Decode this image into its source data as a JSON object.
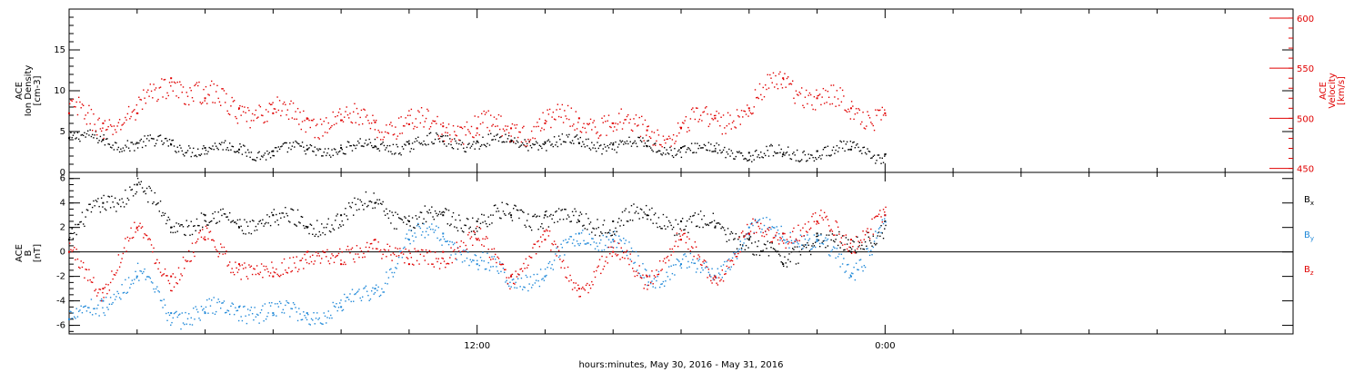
{
  "chart_data": {
    "type": "scatter",
    "xlabel": "hours:minutes, May 30, 2016 - May 31, 2016",
    "x_unit": "hours since May 30, 2016 00:00",
    "x_range": [
      0,
      36
    ],
    "x_ticks": [
      {
        "at": 12,
        "label": "12:00"
      },
      {
        "at": 24,
        "label": "0:00"
      }
    ],
    "panels": [
      {
        "name": "top",
        "left_axis": {
          "label_lines": [
            "ACE",
            "Ion Density",
            "[cm-3]"
          ],
          "range": [
            0,
            20
          ],
          "ticks": [
            0,
            5,
            10,
            15
          ],
          "tick_labels": [
            "0",
            "5",
            "10",
            "15"
          ],
          "color": "#000000"
        },
        "right_axis": {
          "label_lines": [
            "ACE",
            "Velocity",
            "[km/s]"
          ],
          "range": [
            446,
            609
          ],
          "ticks": [
            450,
            500,
            550,
            600
          ],
          "tick_labels": [
            "450",
            "500",
            "550",
            "600"
          ],
          "color": "#e00000"
        },
        "series": [
          {
            "name": "Ion Density",
            "axis": "left",
            "color": "#000000",
            "x": [
              0,
              1,
              2,
              3,
              4,
              5,
              6,
              7,
              8,
              9,
              10,
              11,
              12,
              13,
              14,
              15,
              16,
              17,
              18,
              19,
              20,
              21,
              22,
              23,
              24
            ],
            "y": [
              4.2,
              4.0,
              3.6,
              3.4,
              3.0,
              2.8,
              2.6,
              2.8,
              3.0,
              3.2,
              3.5,
              3.8,
              3.8,
              3.8,
              3.7,
              3.6,
              3.4,
              3.2,
              3.0,
              2.6,
              2.4,
              2.2,
              2.6,
              2.8,
              2.2
            ]
          },
          {
            "name": "Velocity",
            "axis": "right",
            "color": "#e00000",
            "x": [
              0,
              1,
              2,
              3,
              4,
              5,
              6,
              7,
              8,
              9,
              10,
              11,
              12,
              13,
              14,
              15,
              16,
              17,
              18,
              19,
              20,
              21,
              22,
              23,
              24
            ],
            "y": [
              505,
              495,
              505,
              540,
              520,
              510,
              505,
              500,
              498,
              496,
              494,
              492,
              490,
              490,
              495,
              500,
              495,
              488,
              490,
              500,
              510,
              540,
              520,
              510,
              505
            ]
          }
        ]
      },
      {
        "name": "bottom",
        "left_axis": {
          "label_lines": [
            "ACE",
            "B",
            "[nT]"
          ],
          "range": [
            -6.7,
            6.5
          ],
          "ticks": [
            -6,
            -4,
            -2,
            0,
            2,
            4,
            6
          ],
          "tick_labels": [
            "-6",
            "-4",
            "-2",
            "0",
            "2",
            "4",
            "6"
          ],
          "color": "#000000"
        },
        "zero_line": true,
        "series": [
          {
            "name": "Bx",
            "color": "#000000",
            "x": [
              0,
              1,
              2,
              3,
              4,
              5,
              6,
              7,
              8,
              9,
              10,
              11,
              12,
              13,
              14,
              15,
              16,
              17,
              18,
              19,
              20,
              21,
              22,
              23,
              24
            ],
            "y": [
              1,
              4,
              5.5,
              2,
              3,
              2,
              3,
              2,
              3,
              4,
              2.5,
              3,
              2.5,
              3,
              3,
              2.5,
              2.5,
              3,
              2.5,
              2,
              1,
              -1,
              1.5,
              0,
              2.5
            ]
          },
          {
            "name": "By",
            "color": "#1f88d8",
            "x": [
              0,
              1,
              2,
              3,
              4,
              5,
              6,
              7,
              8,
              9,
              10,
              11,
              12,
              13,
              14,
              15,
              16,
              17,
              18,
              19,
              20,
              21,
              22,
              23,
              24
            ],
            "y": [
              -5.5,
              -4,
              -2,
              -5,
              -5,
              -4.5,
              -5,
              -5,
              -4.5,
              -3,
              1,
              1.5,
              -1,
              -2,
              -2,
              1.5,
              1,
              -2,
              -1,
              -2,
              2,
              1.5,
              1,
              -2,
              3
            ]
          },
          {
            "name": "Bz",
            "color": "#e00000",
            "x": [
              0,
              1,
              2,
              3,
              4,
              5,
              6,
              7,
              8,
              9,
              10,
              11,
              12,
              13,
              14,
              15,
              16,
              17,
              18,
              19,
              20,
              21,
              22,
              23,
              24
            ],
            "y": [
              0,
              -3,
              2,
              -2,
              1,
              -1,
              -2,
              0,
              -1,
              1,
              -1,
              0,
              1,
              -2,
              1,
              -3,
              0,
              -2,
              1,
              -2,
              1.5,
              1.5,
              2.5,
              1,
              3
            ]
          }
        ],
        "legend": [
          {
            "label": "B",
            "sub": "x",
            "color": "#000000"
          },
          {
            "label": "B",
            "sub": "y",
            "color": "#1f88d8"
          },
          {
            "label": "B",
            "sub": "z",
            "color": "#e00000"
          }
        ]
      }
    ]
  }
}
